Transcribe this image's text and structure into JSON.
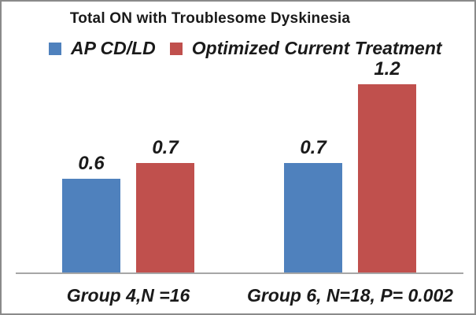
{
  "frame": {
    "background": "#FFFFFF",
    "border_color": "#8A8A8A"
  },
  "chart_data": {
    "type": "bar",
    "title": "Total ON with Troublesome Dyskinesia",
    "categories": [
      "Group 4,N =16",
      "Group 6, N=18, P= 0.002"
    ],
    "series": [
      {
        "name": "AP CD/LD",
        "color": "#4F81BD",
        "values": [
          0.6,
          0.7
        ],
        "labels": [
          "0.6",
          "0.7"
        ]
      },
      {
        "name": "Optimized Current Treatment",
        "color": "#C0504D",
        "values": [
          0.7,
          1.2
        ],
        "labels": [
          "0.7",
          "1.2"
        ]
      }
    ],
    "xlabel": "",
    "ylabel": "",
    "ylim": [
      0,
      1.3
    ],
    "grid": false,
    "y_axis_shown": false,
    "legend_position": "top",
    "axis_line_color": "#A6A6A6",
    "text_color": "#1A1A1A",
    "data_labels_shown": true
  }
}
